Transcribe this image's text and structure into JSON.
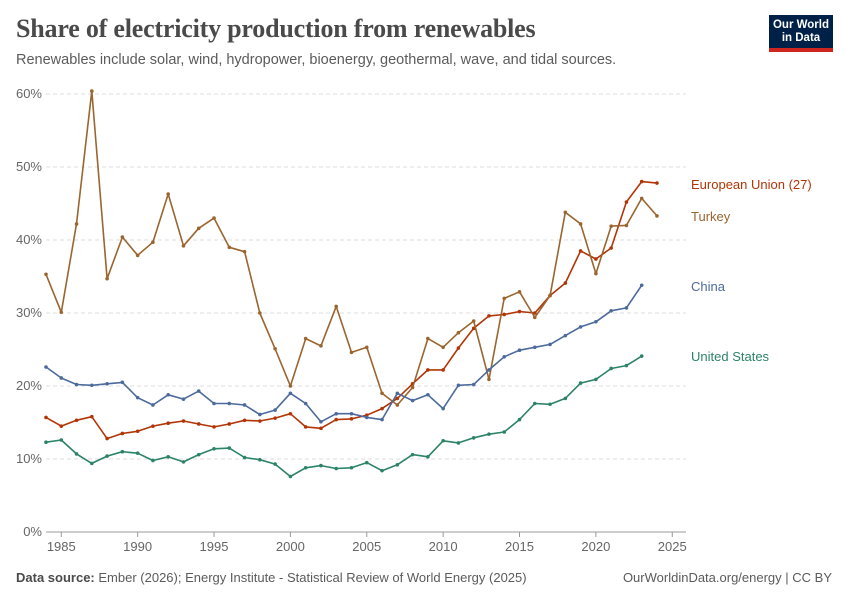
{
  "header": {
    "title": "Share of electricity production from renewables",
    "subtitle": "Renewables include solar, wind, hydropower, bioenergy, geothermal, wave, and tidal sources.",
    "logo_line1": "Our World",
    "logo_line2": "in Data"
  },
  "footer": {
    "source_label": "Data source:",
    "source_text": "Ember (2026); Energy Institute - Statistical Review of World Energy (2025)",
    "credit": "OurWorldinData.org/energy | CC BY"
  },
  "colors": {
    "european_union": "#b13507",
    "turkey": "#9a652e",
    "china": "#4c6a9c",
    "united_states": "#2c8465",
    "grid": "#dddddd",
    "axis": "#999999"
  },
  "chart_data": {
    "type": "line",
    "title": "Share of electricity production from renewables",
    "subtitle": "Renewables include solar, wind, hydropower, bioenergy, geothermal, wave, and tidal sources.",
    "xlabel": "",
    "ylabel": "",
    "x_ticks": [
      "1985",
      "1990",
      "1995",
      "2000",
      "2005",
      "2010",
      "2015",
      "2020",
      "2025"
    ],
    "y_ticks": [
      "0%",
      "10%",
      "20%",
      "30%",
      "40%",
      "50%",
      "60%"
    ],
    "xlim": [
      1984,
      2025.9
    ],
    "ylim": [
      0,
      60
    ],
    "grid": "horizontal dashed",
    "legend": "labels at line ends (right)",
    "series": [
      {
        "name": "European Union (27)",
        "color": "#b13507",
        "points": [
          [
            1984,
            15.7
          ],
          [
            1985,
            14.5
          ],
          [
            1986,
            15.3
          ],
          [
            1987,
            15.8
          ],
          [
            1988,
            12.8
          ],
          [
            1989,
            13.5
          ],
          [
            1990,
            13.8
          ],
          [
            1991,
            14.5
          ],
          [
            1992,
            14.9
          ],
          [
            1993,
            15.2
          ],
          [
            1994,
            14.8
          ],
          [
            1995,
            14.4
          ],
          [
            1996,
            14.8
          ],
          [
            1997,
            15.3
          ],
          [
            1998,
            15.2
          ],
          [
            1999,
            15.6
          ],
          [
            2000,
            16.2
          ],
          [
            2001,
            14.4
          ],
          [
            2002,
            14.2
          ],
          [
            2003,
            15.4
          ],
          [
            2004,
            15.5
          ],
          [
            2005,
            16.0
          ],
          [
            2006,
            16.9
          ],
          [
            2007,
            18.3
          ],
          [
            2008,
            20.3
          ],
          [
            2009,
            22.2
          ],
          [
            2010,
            22.2
          ],
          [
            2011,
            25.2
          ],
          [
            2012,
            27.9
          ],
          [
            2013,
            29.6
          ],
          [
            2014,
            29.8
          ],
          [
            2015,
            30.2
          ],
          [
            2016,
            30.0
          ],
          [
            2017,
            32.4
          ],
          [
            2018,
            34.1
          ],
          [
            2019,
            38.5
          ],
          [
            2020,
            37.4
          ],
          [
            2021,
            38.9
          ],
          [
            2022,
            45.2
          ],
          [
            2023,
            48.0
          ],
          [
            2024,
            47.8
          ]
        ]
      },
      {
        "name": "Turkey",
        "color": "#9a652e",
        "points": [
          [
            1984,
            35.3
          ],
          [
            1985,
            30.1
          ],
          [
            1986,
            42.2
          ],
          [
            1987,
            60.4
          ],
          [
            1988,
            34.7
          ],
          [
            1989,
            40.4
          ],
          [
            1990,
            37.9
          ],
          [
            1991,
            39.7
          ],
          [
            1992,
            46.3
          ],
          [
            1993,
            39.2
          ],
          [
            1994,
            41.6
          ],
          [
            1995,
            43.0
          ],
          [
            1996,
            39.0
          ],
          [
            1997,
            38.4
          ],
          [
            1998,
            30.0
          ],
          [
            1999,
            25.1
          ],
          [
            2000,
            20.0
          ],
          [
            2001,
            26.5
          ],
          [
            2002,
            25.5
          ],
          [
            2003,
            30.9
          ],
          [
            2004,
            24.6
          ],
          [
            2005,
            25.3
          ],
          [
            2006,
            19.0
          ],
          [
            2007,
            17.4
          ],
          [
            2008,
            19.8
          ],
          [
            2009,
            26.5
          ],
          [
            2010,
            25.3
          ],
          [
            2011,
            27.3
          ],
          [
            2012,
            28.9
          ],
          [
            2013,
            20.9
          ],
          [
            2014,
            32.0
          ],
          [
            2015,
            32.9
          ],
          [
            2016,
            29.4
          ],
          [
            2017,
            32.4
          ],
          [
            2018,
            43.8
          ],
          [
            2019,
            42.2
          ],
          [
            2020,
            35.4
          ],
          [
            2021,
            41.9
          ],
          [
            2022,
            42.0
          ],
          [
            2023,
            45.7
          ],
          [
            2024,
            43.3
          ]
        ]
      },
      {
        "name": "China",
        "color": "#4c6a9c",
        "points": [
          [
            1984,
            22.6
          ],
          [
            1985,
            21.1
          ],
          [
            1986,
            20.2
          ],
          [
            1987,
            20.1
          ],
          [
            1988,
            20.3
          ],
          [
            1989,
            20.5
          ],
          [
            1990,
            18.4
          ],
          [
            1991,
            17.4
          ],
          [
            1992,
            18.8
          ],
          [
            1993,
            18.2
          ],
          [
            1994,
            19.3
          ],
          [
            1995,
            17.6
          ],
          [
            1996,
            17.6
          ],
          [
            1997,
            17.4
          ],
          [
            1998,
            16.1
          ],
          [
            1999,
            16.7
          ],
          [
            2000,
            19.0
          ],
          [
            2001,
            17.6
          ],
          [
            2002,
            15.1
          ],
          [
            2003,
            16.2
          ],
          [
            2004,
            16.2
          ],
          [
            2005,
            15.7
          ],
          [
            2006,
            15.4
          ],
          [
            2007,
            19.0
          ],
          [
            2008,
            18.0
          ],
          [
            2009,
            18.8
          ],
          [
            2010,
            16.9
          ],
          [
            2011,
            20.1
          ],
          [
            2012,
            20.2
          ],
          [
            2013,
            22.2
          ],
          [
            2014,
            24.0
          ],
          [
            2015,
            24.9
          ],
          [
            2016,
            25.3
          ],
          [
            2017,
            25.7
          ],
          [
            2018,
            26.9
          ],
          [
            2019,
            28.1
          ],
          [
            2020,
            28.8
          ],
          [
            2021,
            30.3
          ],
          [
            2022,
            30.7
          ],
          [
            2023,
            33.8
          ]
        ]
      },
      {
        "name": "United States",
        "color": "#2c8465",
        "points": [
          [
            1984,
            12.3
          ],
          [
            1985,
            12.6
          ],
          [
            1986,
            10.7
          ],
          [
            1987,
            9.4
          ],
          [
            1988,
            10.4
          ],
          [
            1989,
            11.0
          ],
          [
            1990,
            10.8
          ],
          [
            1991,
            9.8
          ],
          [
            1992,
            10.3
          ],
          [
            1993,
            9.6
          ],
          [
            1994,
            10.6
          ],
          [
            1995,
            11.4
          ],
          [
            1996,
            11.5
          ],
          [
            1997,
            10.2
          ],
          [
            1998,
            9.9
          ],
          [
            1999,
            9.3
          ],
          [
            2000,
            7.6
          ],
          [
            2001,
            8.8
          ],
          [
            2002,
            9.1
          ],
          [
            2003,
            8.7
          ],
          [
            2004,
            8.8
          ],
          [
            2005,
            9.5
          ],
          [
            2006,
            8.4
          ],
          [
            2007,
            9.2
          ],
          [
            2008,
            10.6
          ],
          [
            2009,
            10.3
          ],
          [
            2010,
            12.5
          ],
          [
            2011,
            12.2
          ],
          [
            2012,
            12.9
          ],
          [
            2013,
            13.4
          ],
          [
            2014,
            13.7
          ],
          [
            2015,
            15.4
          ],
          [
            2016,
            17.6
          ],
          [
            2017,
            17.5
          ],
          [
            2018,
            18.3
          ],
          [
            2019,
            20.4
          ],
          [
            2020,
            20.9
          ],
          [
            2021,
            22.4
          ],
          [
            2022,
            22.8
          ],
          [
            2023,
            24.1
          ]
        ]
      }
    ]
  }
}
